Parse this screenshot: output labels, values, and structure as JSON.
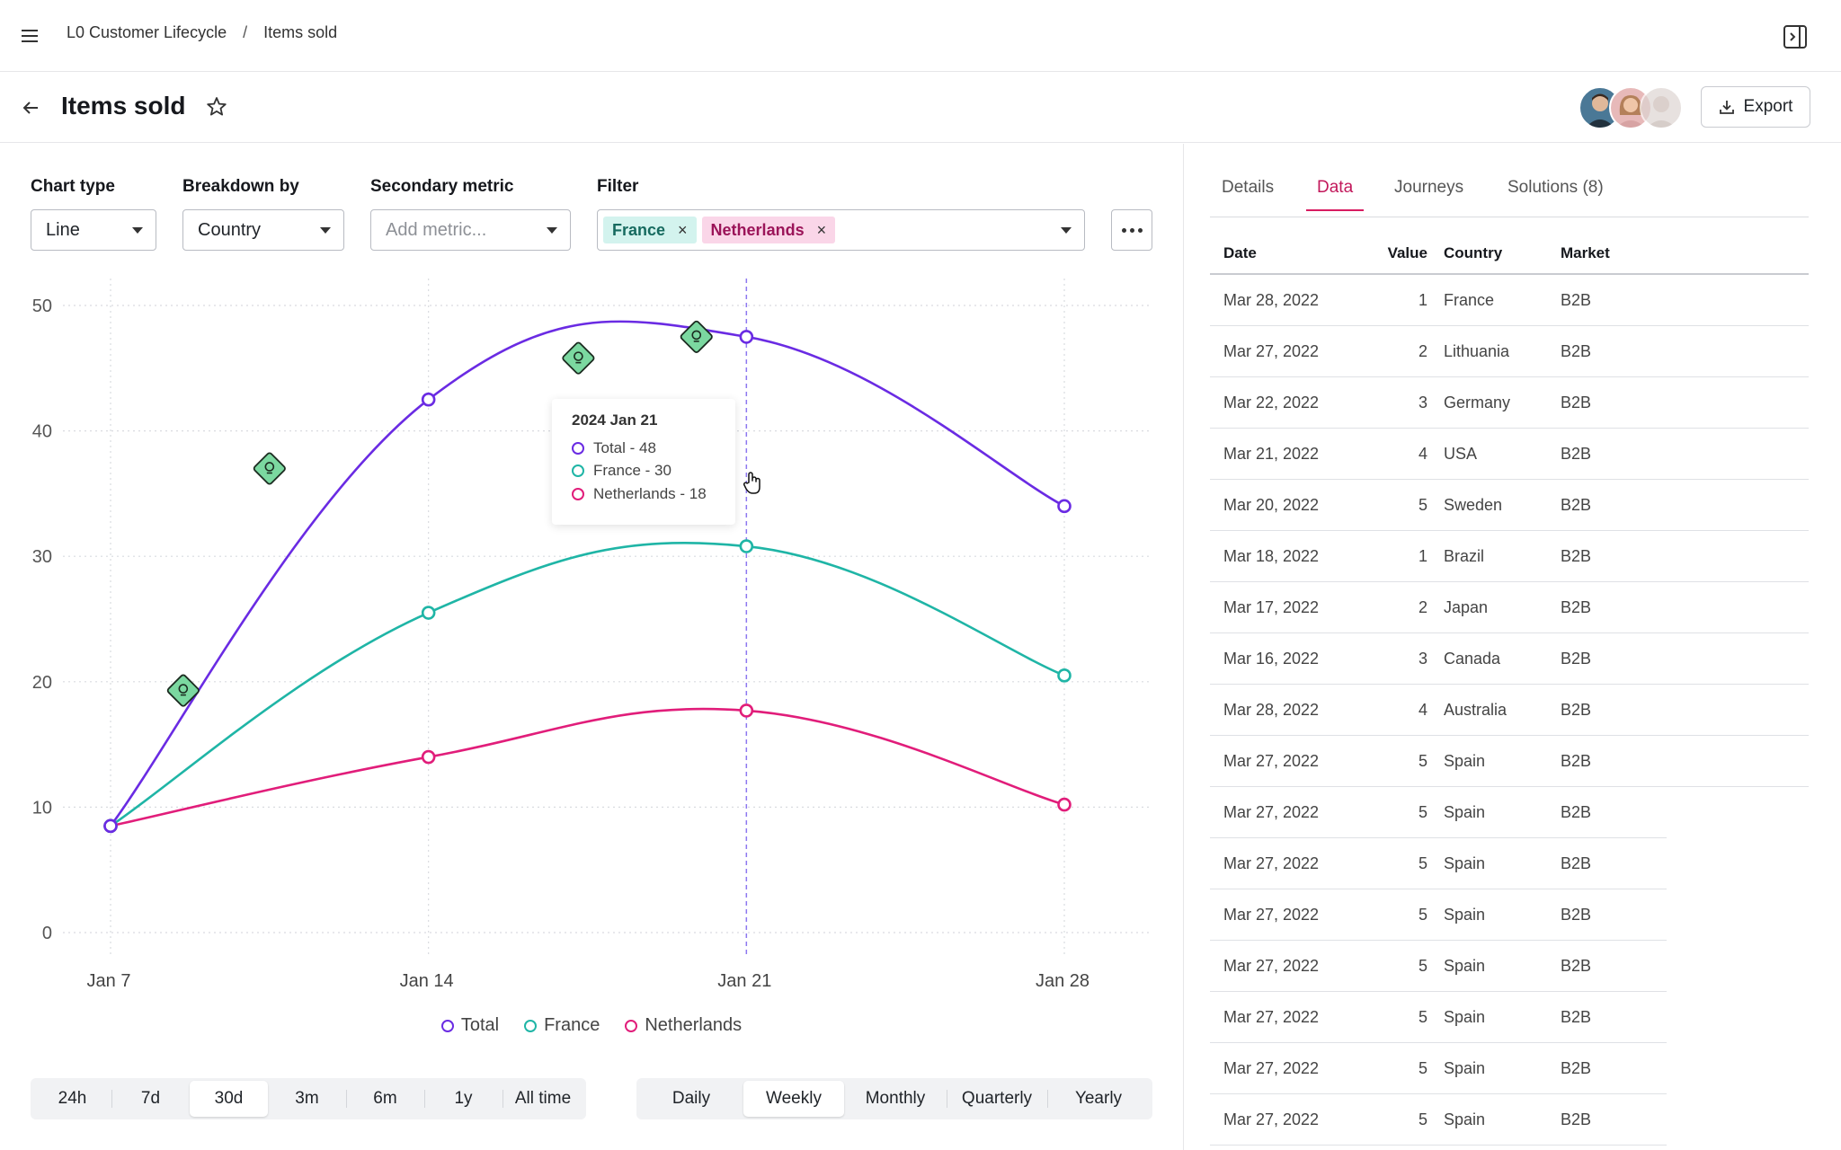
{
  "breadcrumb": {
    "parent": "L0 Customer Lifecycle",
    "separator": "/",
    "current": "Items sold"
  },
  "header": {
    "title": "Items sold",
    "export_label": "Export"
  },
  "controls": {
    "chart_type": {
      "label": "Chart type",
      "value": "Line"
    },
    "breakdown": {
      "label": "Breakdown by",
      "value": "Country"
    },
    "secondary": {
      "label": "Secondary metric",
      "placeholder": "Add metric..."
    },
    "filter": {
      "label": "Filter",
      "chips": [
        "France",
        "Netherlands"
      ],
      "remove_glyph": "×"
    }
  },
  "tooltip": {
    "title": "2024 Jan 21",
    "rows": [
      "Total - 48",
      "France - 30",
      "Netherlands - 18"
    ]
  },
  "legend": [
    "Total",
    "France",
    "Netherlands"
  ],
  "colors": {
    "total": "#6a2be3",
    "france": "#1fb5a6",
    "netherlands": "#e11d7a",
    "insight": "#7bd8a0",
    "accent": "#d81b60"
  },
  "chart_data": {
    "type": "line",
    "x": [
      "Jan 7",
      "Jan 14",
      "Jan 21",
      "Jan 28"
    ],
    "ylim": [
      0,
      50
    ],
    "yticks": [
      0,
      10,
      20,
      30,
      40,
      50
    ],
    "series": [
      {
        "name": "Total",
        "values": [
          8.5,
          42.5,
          47.5,
          34
        ]
      },
      {
        "name": "France",
        "values": [
          8.5,
          25.5,
          30.8,
          20.5
        ]
      },
      {
        "name": "Netherlands",
        "values": [
          8.5,
          14,
          17.7,
          10.2
        ]
      }
    ],
    "highlight_x": "Jan 21",
    "insight_markers": [
      {
        "x_day": 8.6,
        "y": 19.3
      },
      {
        "x_day": 10.5,
        "y": 37
      },
      {
        "x_day": 17.3,
        "y": 45.8
      },
      {
        "x_day": 19.9,
        "y": 47.5
      }
    ],
    "grid": true
  },
  "time_ranges": {
    "items": [
      "24h",
      "7d",
      "30d",
      "3m",
      "6m",
      "1y",
      "All time"
    ],
    "active": "30d"
  },
  "granularity": {
    "items": [
      "Daily",
      "Weekly",
      "Monthly",
      "Quarterly",
      "Yearly"
    ],
    "active": "Weekly"
  },
  "side": {
    "tabs": [
      "Details",
      "Data",
      "Journeys",
      "Solutions (8)"
    ],
    "active_tab": "Data",
    "columns": [
      "Date",
      "Value",
      "Country",
      "Market"
    ],
    "rows": [
      [
        "Mar 28, 2022",
        "1",
        "France",
        "B2B"
      ],
      [
        "Mar 27, 2022",
        "2",
        "Lithuania",
        "B2B"
      ],
      [
        "Mar 22, 2022",
        "3",
        "Germany",
        "B2B"
      ],
      [
        "Mar 21, 2022",
        "4",
        "USA",
        "B2B"
      ],
      [
        "Mar 20, 2022",
        "5",
        "Sweden",
        "B2B"
      ],
      [
        "Mar 18, 2022",
        "1",
        "Brazil",
        "B2B"
      ],
      [
        "Mar 17, 2022",
        "2",
        "Japan",
        "B2B"
      ],
      [
        "Mar 16, 2022",
        "3",
        "Canada",
        "B2B"
      ],
      [
        "Mar 28, 2022",
        "4",
        "Australia",
        "B2B"
      ],
      [
        "Mar 27, 2022",
        "5",
        "Spain",
        "B2B"
      ],
      [
        "Mar 27, 2022",
        "5",
        "Spain",
        "B2B"
      ],
      [
        "Mar 27, 2022",
        "5",
        "Spain",
        "B2B"
      ],
      [
        "Mar 27, 2022",
        "5",
        "Spain",
        "B2B"
      ],
      [
        "Mar 27, 2022",
        "5",
        "Spain",
        "B2B"
      ],
      [
        "Mar 27, 2022",
        "5",
        "Spain",
        "B2B"
      ],
      [
        "Mar 27, 2022",
        "5",
        "Spain",
        "B2B"
      ],
      [
        "Mar 27, 2022",
        "5",
        "Spain",
        "B2B"
      ]
    ]
  }
}
